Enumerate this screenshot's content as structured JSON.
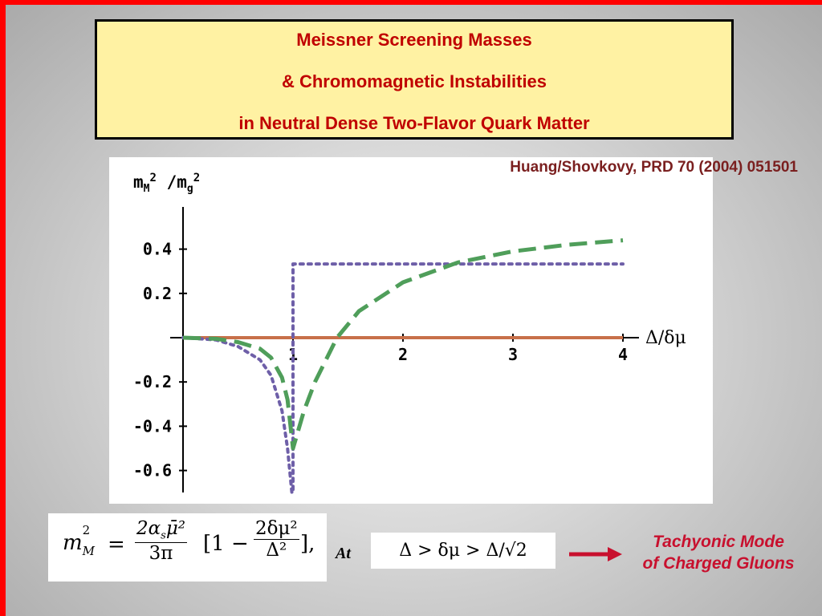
{
  "slide": {
    "title_lines": [
      "Meissner Screening Masses",
      "& Chromomagnetic Instabilities",
      "in Neutral Dense Two-Flavor Quark Matter"
    ],
    "citation": "Huang/Shovkovy, PRD 70 (2004) 051501",
    "at_label": "At",
    "conclusion_lines": [
      "Tachyonic Mode",
      "of Charged Gluons"
    ],
    "colors": {
      "frame": "#ff0000",
      "title_bg": "#fff2a3",
      "title_text": "#c00000",
      "arrow": "#c8102e"
    },
    "arrow_icon": "right-arrow-icon"
  },
  "formula": {
    "lhs": "m",
    "lhs_sub": "M",
    "lhs_sup": "2",
    "eq": "=",
    "coef_num": "2α",
    "coef_num_sub": "s",
    "coef_num_tail": "μ̄²",
    "coef_den": "3π",
    "bracket_open": "[1 −",
    "inner_num": "2δμ²",
    "inner_den": "Δ²",
    "bracket_close": "],"
  },
  "condition": "Δ > δμ > Δ/√2",
  "chart_data": {
    "type": "line",
    "ylabel": "m_M^2 / m_g^2",
    "xlabel": "Δ/δμ",
    "xlim": [
      0,
      4.1
    ],
    "ylim": [
      -0.7,
      0.5
    ],
    "x_ticks": [
      "1",
      "2",
      "3",
      "4"
    ],
    "y_ticks": [
      "0.4",
      "0.2",
      "-0.2",
      "-0.4",
      "-0.6"
    ],
    "y_tick_values": [
      0.4,
      0.2,
      -0.2,
      -0.4,
      -0.6
    ],
    "x_tick_values": [
      1,
      2,
      3,
      4
    ],
    "series": [
      {
        "style": "solid",
        "color": "#c8704a",
        "x": [
          0,
          4
        ],
        "y": [
          0,
          0
        ]
      },
      {
        "style": "dotted",
        "color": "#6e5fa8",
        "x": [
          0,
          0.3,
          0.5,
          0.7,
          0.8,
          0.9,
          0.95,
          0.99,
          1.0,
          1.0,
          1.0,
          4.0
        ],
        "y": [
          0,
          -0.01,
          -0.04,
          -0.1,
          -0.17,
          -0.33,
          -0.5,
          -0.7,
          -0.7,
          0,
          0.333,
          0.333
        ]
      },
      {
        "style": "dashed",
        "color": "#4f9e5a",
        "x": [
          0,
          0.3,
          0.5,
          0.7,
          0.8,
          0.9,
          0.95,
          1.0,
          1.1,
          1.2,
          1.4,
          1.6,
          2.0,
          2.5,
          3.0,
          3.5,
          4.0
        ],
        "y": [
          0,
          -0.005,
          -0.02,
          -0.05,
          -0.09,
          -0.18,
          -0.28,
          -0.5,
          -0.33,
          -0.2,
          0.0,
          0.12,
          0.25,
          0.34,
          0.39,
          0.42,
          0.44
        ]
      }
    ]
  }
}
